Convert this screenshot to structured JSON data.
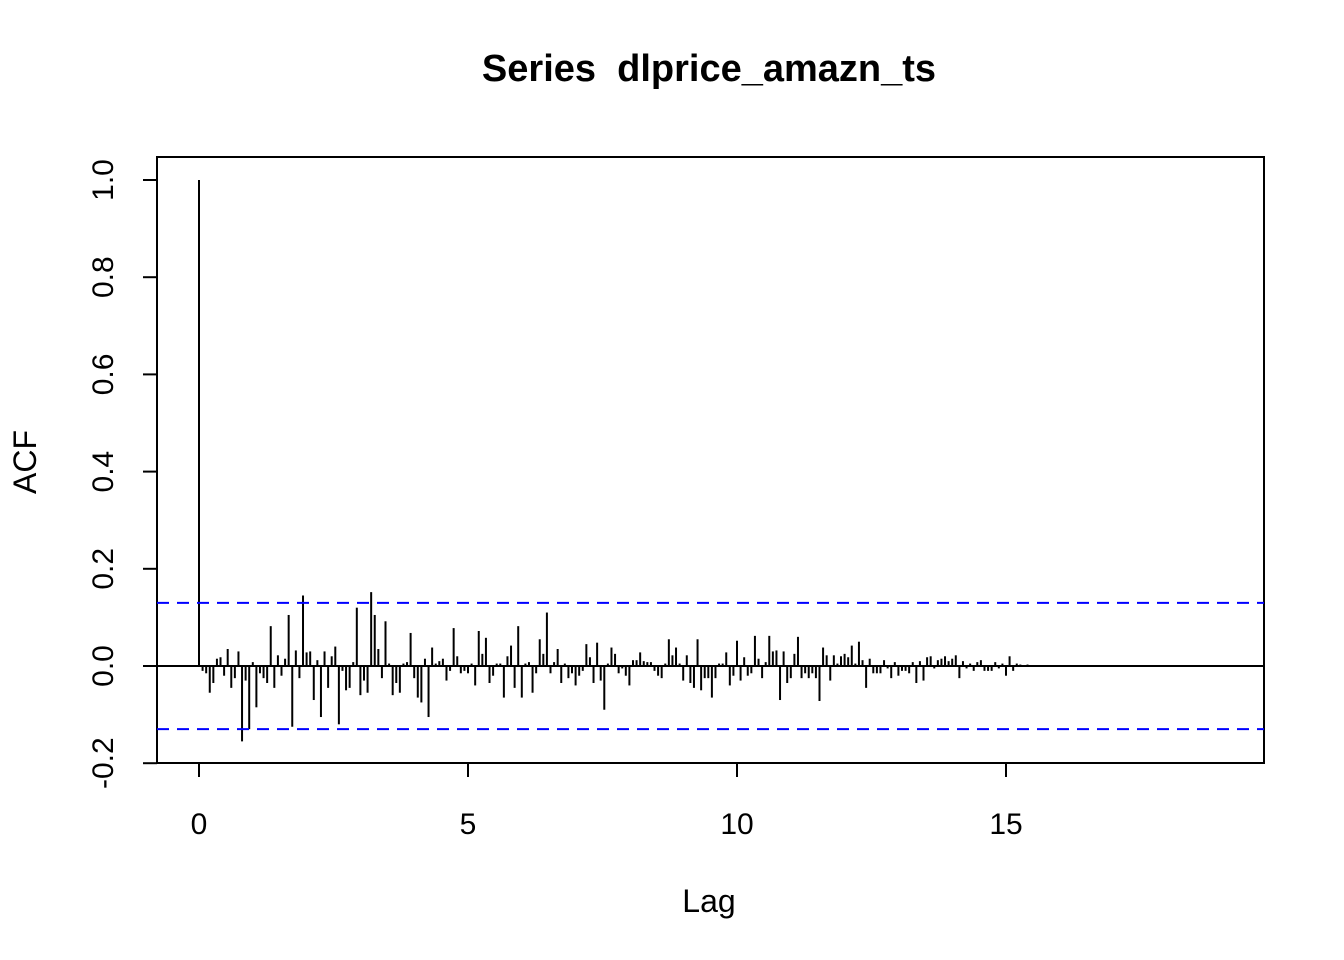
{
  "chart_data": {
    "type": "bar",
    "title": "Series  dlprice_amazn_ts",
    "xlabel": "Lag",
    "ylabel": "ACF",
    "xlim": [
      -0.76,
      19.76
    ],
    "ylim": [
      -0.2,
      1.0
    ],
    "x_ticks": [
      0,
      5,
      10,
      15
    ],
    "x_tick_labels": [
      "0",
      "5",
      "10",
      "15"
    ],
    "y_ticks": [
      -0.2,
      0.0,
      0.2,
      0.4,
      0.6,
      0.8,
      1.0
    ],
    "y_tick_labels": [
      "-0.2",
      "0.0",
      "0.2",
      "0.4",
      "0.6",
      "0.8",
      "1.0"
    ],
    "lag_step": 0.0666667,
    "confidence_bound": 0.13,
    "bound_color": "#0000ff",
    "bar_color": "#000000",
    "grid": false,
    "acf": [
      1.0,
      -0.01,
      -0.015,
      -0.055,
      -0.035,
      0.015,
      0.018,
      -0.02,
      0.035,
      -0.045,
      -0.025,
      0.03,
      -0.155,
      -0.03,
      -0.13,
      0.008,
      -0.085,
      -0.015,
      -0.025,
      -0.035,
      0.082,
      -0.045,
      0.022,
      -0.02,
      0.015,
      0.105,
      -0.125,
      0.032,
      -0.025,
      0.145,
      0.028,
      0.03,
      -0.07,
      0.012,
      -0.105,
      0.03,
      -0.045,
      0.02,
      0.04,
      -0.12,
      -0.01,
      -0.05,
      -0.045,
      0.008,
      0.12,
      -0.06,
      -0.03,
      -0.055,
      0.152,
      0.105,
      0.035,
      -0.025,
      0.092,
      0.005,
      -0.06,
      -0.035,
      -0.055,
      0.005,
      0.008,
      0.068,
      -0.025,
      -0.065,
      -0.075,
      0.015,
      -0.105,
      0.038,
      0.005,
      0.01,
      0.015,
      -0.03,
      -0.01,
      0.078,
      0.02,
      -0.015,
      -0.01,
      -0.015,
      0.005,
      -0.04,
      0.072,
      0.025,
      0.058,
      -0.035,
      -0.02,
      0.005,
      0.005,
      -0.065,
      0.02,
      0.042,
      -0.045,
      0.082,
      -0.065,
      0.005,
      0.008,
      -0.055,
      -0.015,
      0.055,
      0.025,
      0.11,
      -0.015,
      0.008,
      0.035,
      -0.035,
      0.005,
      -0.025,
      -0.015,
      -0.04,
      -0.02,
      -0.01,
      0.045,
      0.018,
      -0.035,
      0.048,
      -0.03,
      -0.09,
      0.005,
      0.038,
      0.025,
      -0.015,
      -0.005,
      -0.02,
      -0.04,
      0.012,
      0.012,
      0.028,
      0.01,
      0.008,
      0.008,
      -0.01,
      -0.02,
      -0.025,
      0.005,
      0.055,
      0.022,
      0.038,
      0.005,
      -0.03,
      0.022,
      -0.035,
      -0.045,
      0.055,
      -0.05,
      -0.025,
      -0.025,
      -0.065,
      -0.025,
      0.005,
      0.005,
      0.028,
      -0.04,
      -0.02,
      0.052,
      -0.03,
      0.018,
      -0.02,
      -0.015,
      0.062,
      0.015,
      -0.025,
      0.008,
      0.062,
      0.03,
      0.032,
      -0.07,
      0.03,
      -0.035,
      -0.025,
      0.025,
      0.06,
      -0.025,
      -0.015,
      -0.025,
      -0.015,
      -0.025,
      -0.072,
      0.038,
      0.022,
      -0.03,
      0.022,
      0.005,
      0.02,
      0.025,
      0.018,
      0.042,
      0.005,
      0.05,
      0.012,
      -0.045,
      0.015,
      -0.015,
      -0.015,
      -0.015,
      0.012,
      -0.005,
      -0.025,
      0.008,
      -0.02,
      -0.01,
      -0.01,
      -0.015,
      0.008,
      -0.035,
      0.01,
      -0.03,
      0.018,
      0.02,
      -0.005,
      0.012,
      0.015,
      0.02,
      0.01,
      0.015,
      0.022,
      -0.025,
      0.01,
      -0.005,
      0.005,
      -0.01,
      0.008,
      0.012,
      -0.01,
      -0.01,
      -0.01,
      0.008,
      -0.005,
      0.005,
      -0.02,
      0.02,
      -0.01,
      0.005,
      0.003,
      0.002,
      0.003
    ]
  }
}
